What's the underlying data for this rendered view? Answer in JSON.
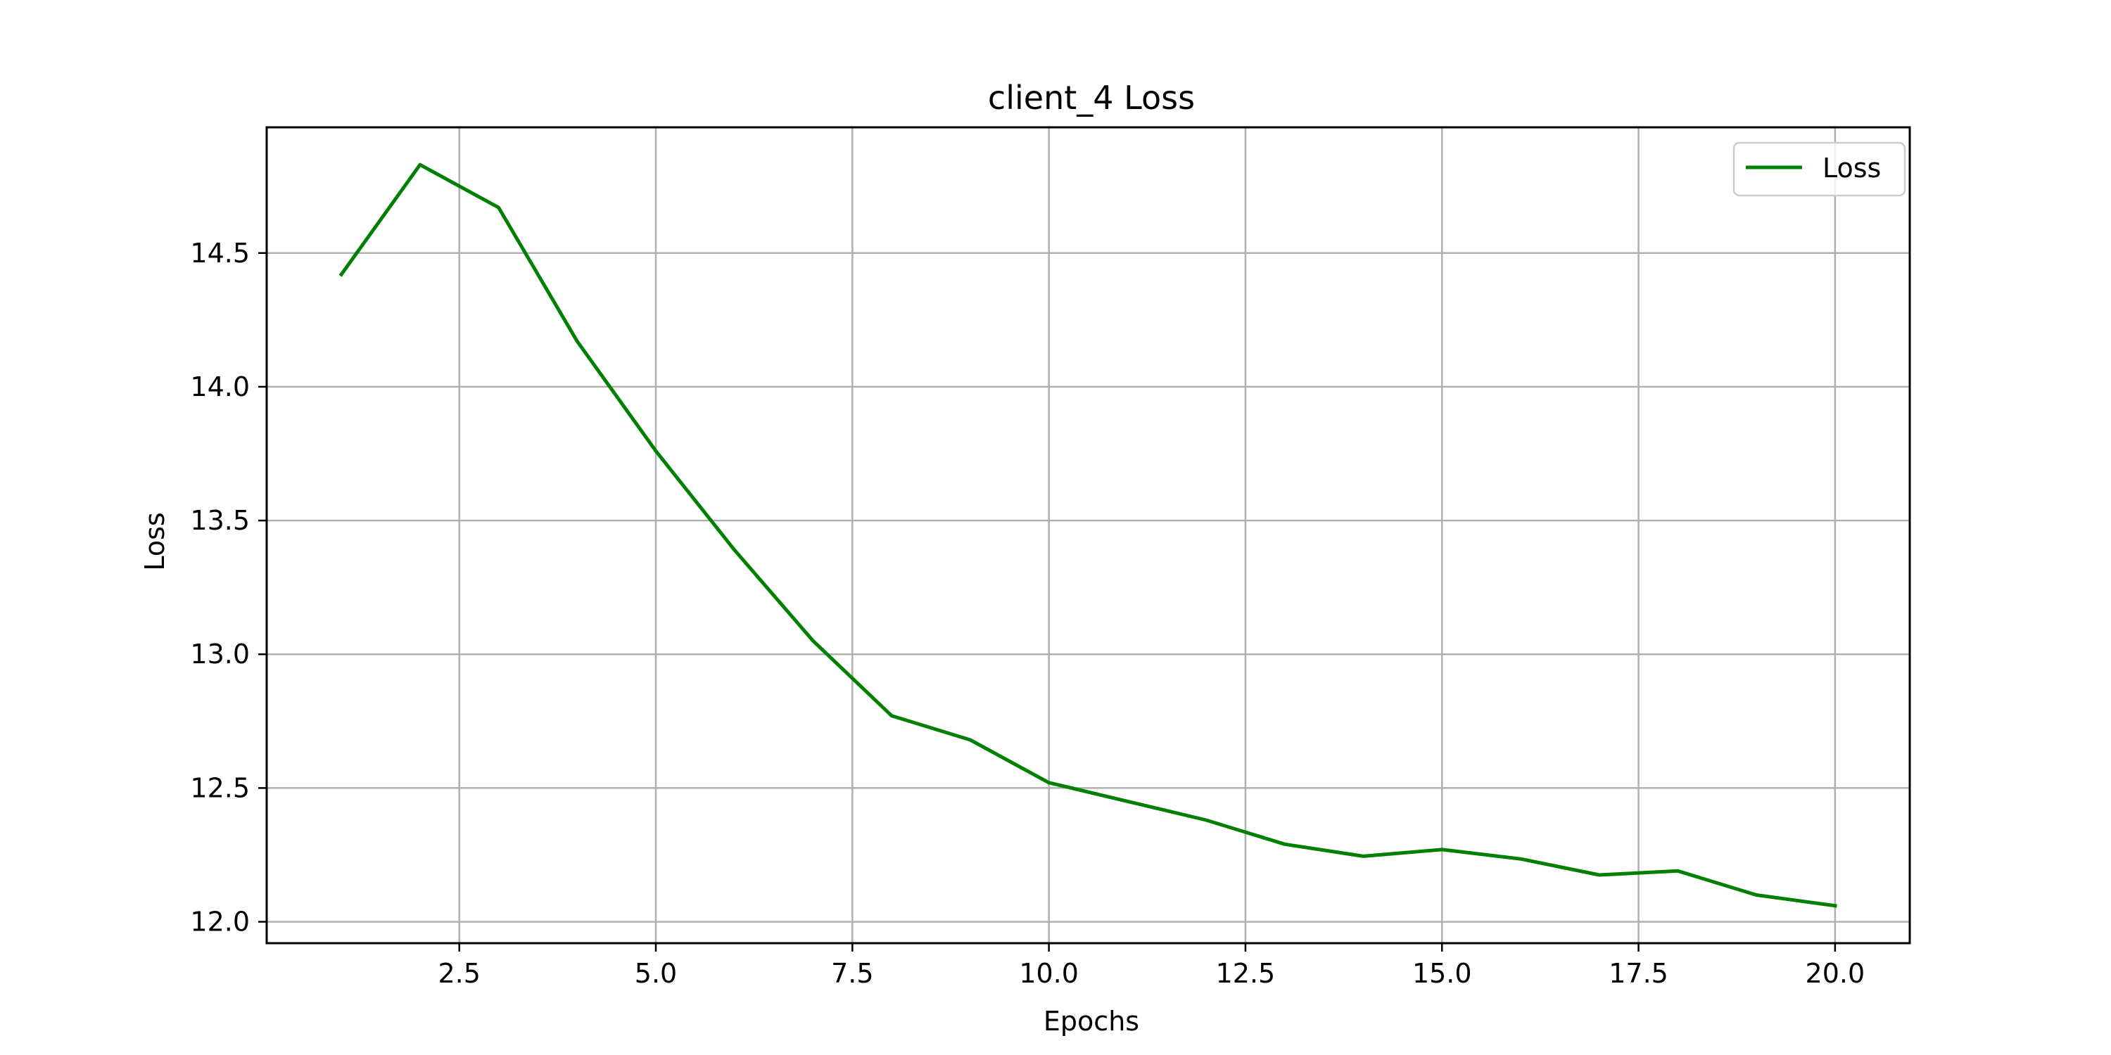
{
  "chart_data": {
    "type": "line",
    "title": "client_4 Loss",
    "xlabel": "Epochs",
    "ylabel": "Loss",
    "xlim": [
      0.05,
      20.95
    ],
    "ylim": [
      11.92,
      14.97
    ],
    "x_ticks": [
      2.5,
      5.0,
      7.5,
      10.0,
      12.5,
      15.0,
      17.5,
      20.0
    ],
    "x_tick_labels": [
      "2.5",
      "5.0",
      "7.5",
      "10.0",
      "12.5",
      "15.0",
      "17.5",
      "20.0"
    ],
    "y_ticks": [
      12.0,
      12.5,
      13.0,
      13.5,
      14.0,
      14.5
    ],
    "y_tick_labels": [
      "12.0",
      "12.5",
      "13.0",
      "13.5",
      "14.0",
      "14.5"
    ],
    "grid": true,
    "legend_position": "top-right",
    "series": [
      {
        "name": "Loss",
        "color": "#008000",
        "x": [
          1,
          2,
          3,
          4,
          5,
          6,
          7,
          8,
          9,
          10,
          11,
          12,
          13,
          14,
          15,
          16,
          17,
          18,
          19,
          20
        ],
        "y": [
          14.42,
          14.83,
          14.67,
          14.17,
          13.76,
          13.39,
          13.05,
          12.77,
          12.68,
          12.52,
          12.45,
          12.38,
          12.29,
          12.245,
          12.27,
          12.235,
          12.175,
          12.19,
          12.1,
          12.06
        ]
      }
    ]
  }
}
